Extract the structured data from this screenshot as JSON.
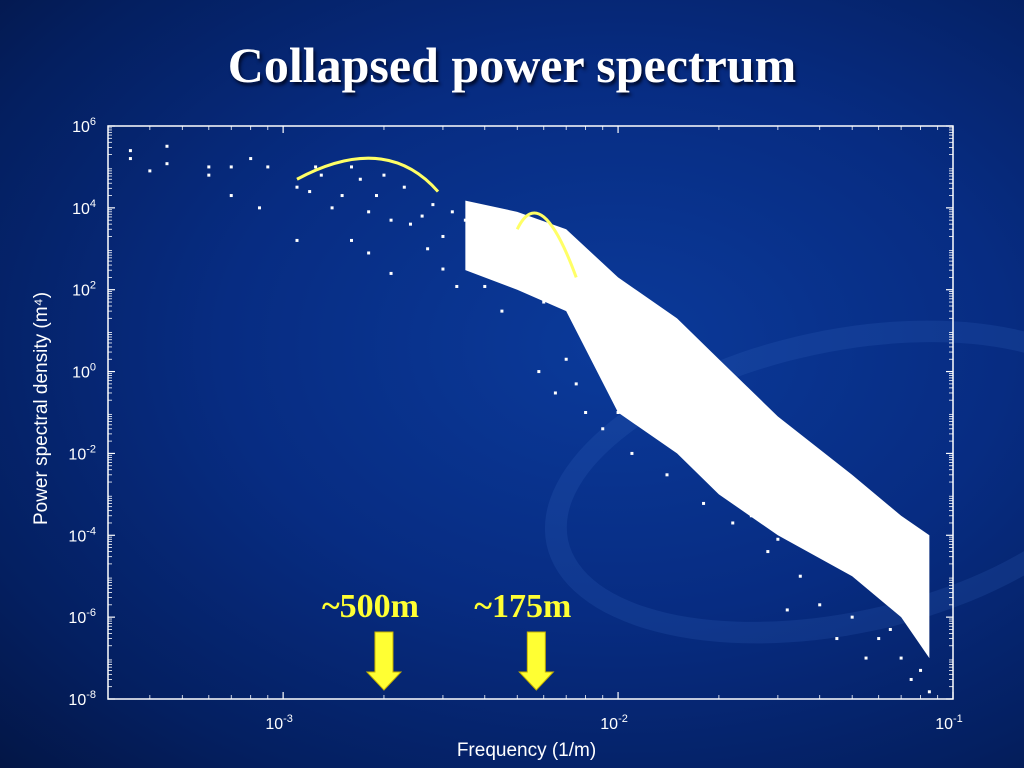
{
  "title": "Collapsed power spectrum",
  "chart_data": {
    "type": "scatter",
    "title": "Collapsed power spectrum",
    "xlabel": "Frequency (1/m)",
    "ylabel": "Power spectral density (m⁴)",
    "x_scale": "log",
    "y_scale": "log",
    "xlim": [
      0.0003,
      0.1
    ],
    "ylim": [
      1e-08,
      1000000.0
    ],
    "x_ticks": [
      {
        "value": 0.001,
        "base": "10",
        "exp": "-3"
      },
      {
        "value": 0.01,
        "base": "10",
        "exp": "-2"
      },
      {
        "value": 0.1,
        "base": "10",
        "exp": "-1"
      }
    ],
    "y_ticks": [
      {
        "value": 1000000.0,
        "base": "10",
        "exp": "6"
      },
      {
        "value": 10000.0,
        "base": "10",
        "exp": "4"
      },
      {
        "value": 100.0,
        "base": "10",
        "exp": "2"
      },
      {
        "value": 1.0,
        "base": "10",
        "exp": "0"
      },
      {
        "value": 0.01,
        "base": "10",
        "exp": "-2"
      },
      {
        "value": 0.0001,
        "base": "10",
        "exp": "-4"
      },
      {
        "value": 1e-06,
        "base": "10",
        "exp": "-6"
      },
      {
        "value": 1e-08,
        "base": "10",
        "exp": "-8"
      }
    ],
    "grid": false,
    "series": [
      {
        "color": "#ffffff",
        "points": [
          [
            0.00035,
            160000.0
          ],
          [
            0.00035,
            250000.0
          ],
          [
            0.00045,
            320000.0
          ],
          [
            0.00045,
            120000.0
          ],
          [
            0.0004,
            80000.0
          ],
          [
            0.0006,
            63000.0
          ],
          [
            0.0006,
            100000.0
          ],
          [
            0.0007,
            100000.0
          ],
          [
            0.0007,
            20000.0
          ],
          [
            0.0008,
            160000.0
          ],
          [
            0.0009,
            100000.0
          ],
          [
            0.00085,
            10000.0
          ],
          [
            0.0011,
            32000.0
          ],
          [
            0.0011,
            1600.0
          ],
          [
            0.0012,
            25000.0
          ],
          [
            0.00125,
            100000.0
          ],
          [
            0.0013,
            63000.0
          ],
          [
            0.0014,
            10000.0
          ],
          [
            0.0015,
            20000.0
          ],
          [
            0.0016,
            100000.0
          ],
          [
            0.0016,
            1600.0
          ],
          [
            0.0017,
            50000.0
          ],
          [
            0.0018,
            8000.0
          ],
          [
            0.0018,
            790.0
          ],
          [
            0.0019,
            20000.0
          ],
          [
            0.002,
            63000.0
          ],
          [
            0.0021,
            5000.0
          ],
          [
            0.0021,
            250.0
          ],
          [
            0.0023,
            32000.0
          ],
          [
            0.0024,
            4000.0
          ],
          [
            0.0026,
            6300.0
          ],
          [
            0.0027,
            1000.0
          ],
          [
            0.0028,
            12000.0
          ],
          [
            0.003,
            2000.0
          ],
          [
            0.003,
            320.0
          ],
          [
            0.0032,
            8000.0
          ],
          [
            0.0033,
            120.0
          ],
          [
            0.0035,
            5000.0
          ],
          [
            0.0037,
            500.0
          ],
          [
            0.004,
            3000.0
          ],
          [
            0.004,
            120.0
          ],
          [
            0.0043,
            1000.0
          ],
          [
            0.0045,
            30.0
          ],
          [
            0.0048,
            2000.0
          ],
          [
            0.005,
            300.0
          ],
          [
            0.0055,
            1000.0
          ],
          [
            0.0058,
            1.0
          ],
          [
            0.006,
            50.0
          ],
          [
            0.0065,
            0.3
          ],
          [
            0.007,
            2.0
          ],
          [
            0.0075,
            0.5
          ],
          [
            0.008,
            0.1
          ],
          [
            0.009,
            0.04
          ],
          [
            0.01,
            0.1
          ],
          [
            0.011,
            0.01
          ],
          [
            0.012,
            0.05
          ],
          [
            0.014,
            0.003
          ],
          [
            0.016,
            0.01
          ],
          [
            0.018,
            0.0006
          ],
          [
            0.02,
            0.002
          ],
          [
            0.022,
            0.0002
          ],
          [
            0.025,
            0.0003
          ],
          [
            0.028,
            4e-05
          ],
          [
            0.03,
            8e-05
          ],
          [
            0.032,
            1.5e-06
          ],
          [
            0.035,
            1e-05
          ],
          [
            0.04,
            2e-06
          ],
          [
            0.045,
            3e-07
          ],
          [
            0.05,
            1e-06
          ],
          [
            0.055,
            1e-07
          ],
          [
            0.06,
            3e-07
          ],
          [
            0.065,
            5e-07
          ],
          [
            0.07,
            1e-07
          ],
          [
            0.075,
            3e-08
          ],
          [
            0.08,
            5e-08
          ],
          [
            0.085,
            1.5e-08
          ]
        ],
        "dense_band": {
          "x": [
            0.0035,
            0.005,
            0.007,
            0.01,
            0.015,
            0.02,
            0.03,
            0.05,
            0.07,
            0.085
          ],
          "y_upper": [
            15000.0,
            8000.0,
            3000.0,
            200.0,
            20.0,
            2.0,
            0.08,
            0.003,
            0.0003,
            0.0001
          ],
          "y_lower": [
            300.0,
            100.0,
            30.0,
            0.1,
            0.01,
            0.001,
            0.0001,
            1e-05,
            1e-06,
            1e-07
          ]
        }
      }
    ],
    "annotations": [
      {
        "label": "~500m",
        "x": 0.002,
        "color": "#ffff33"
      },
      {
        "label": "~175m",
        "x": 0.0057,
        "color": "#ffff33"
      }
    ],
    "highlight_arcs": [
      {
        "x": [
          0.0011,
          0.0019,
          0.0029
        ],
        "y": [
          50000.0,
          160000.0,
          25000.0
        ],
        "color": "#ffff66"
      },
      {
        "x": [
          0.005,
          0.006,
          0.0075
        ],
        "y": [
          3000.0,
          6000.0,
          200.0
        ],
        "color": "#ffff66"
      }
    ]
  }
}
